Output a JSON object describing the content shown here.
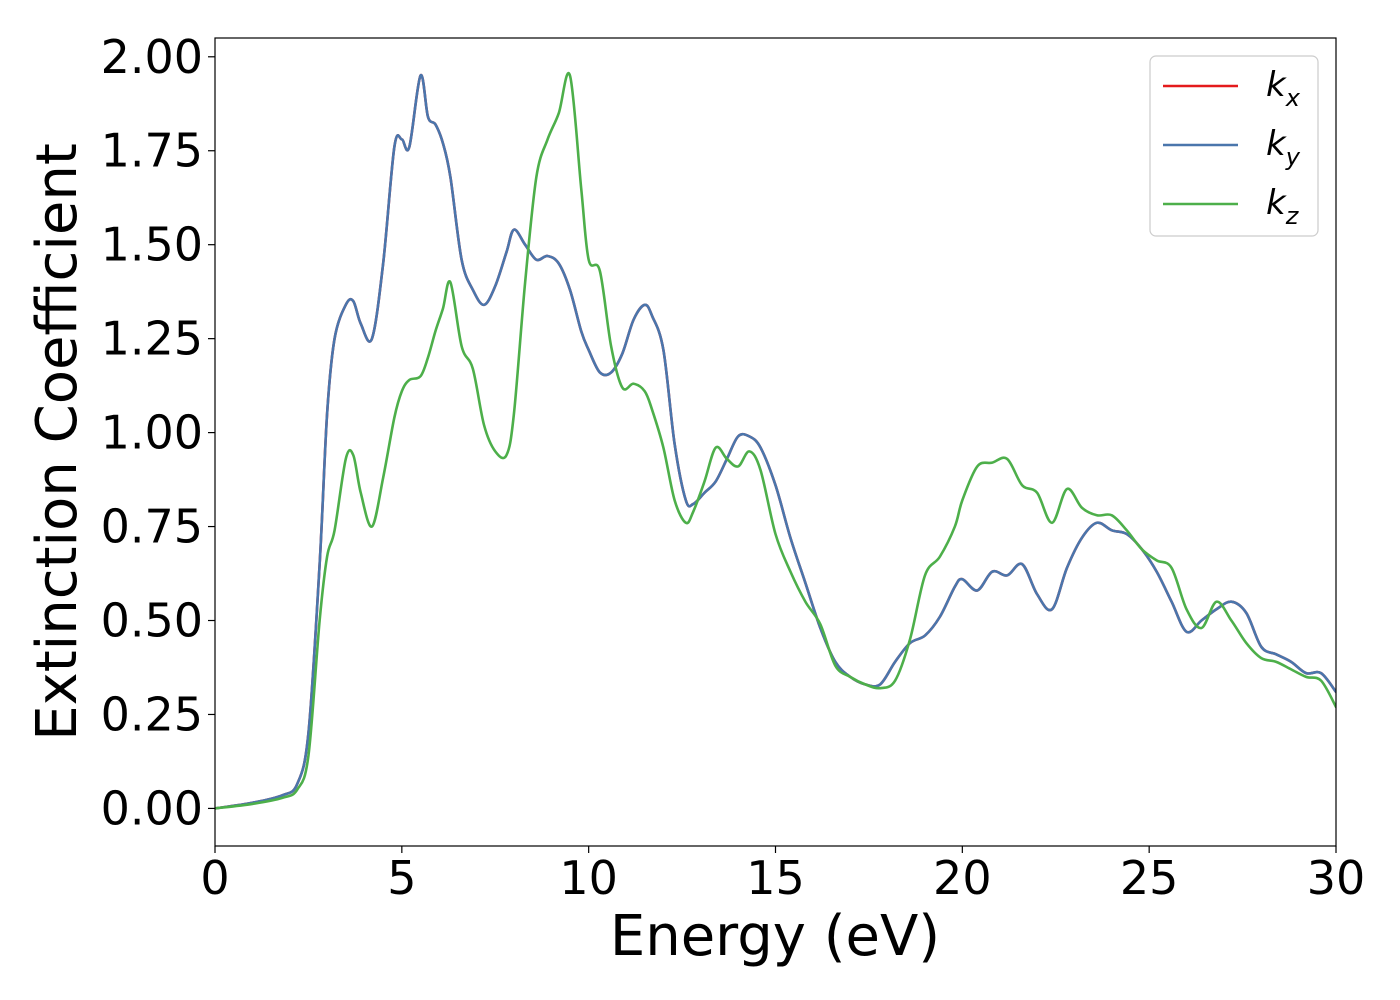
{
  "chart_data": {
    "type": "line",
    "title": "",
    "xlabel": "Energy (eV)",
    "ylabel": "Extinction Coefficient",
    "xlim": [
      0,
      30
    ],
    "ylim": [
      -0.1,
      2.05
    ],
    "xticks": [
      0,
      5,
      10,
      15,
      20,
      25,
      30
    ],
    "xtick_labels": [
      "0",
      "5",
      "10",
      "15",
      "20",
      "25",
      "30"
    ],
    "yticks": [
      0.0,
      0.25,
      0.5,
      0.75,
      1.0,
      1.25,
      1.5,
      1.75,
      2.0
    ],
    "ytick_labels": [
      "0.00",
      "0.25",
      "0.50",
      "0.75",
      "1.00",
      "1.25",
      "1.50",
      "1.75",
      "2.00"
    ],
    "grid": false,
    "legend_position": "top-right",
    "series": [
      {
        "name": "k",
        "subscript": "x",
        "color": "#e41a1c",
        "x": [
          0,
          1,
          1.8,
          2.2,
          2.5,
          2.8,
          3.0,
          3.2,
          3.5,
          3.7,
          3.9,
          4.2,
          4.5,
          4.8,
          5.0,
          5.2,
          5.5,
          5.7,
          5.9,
          6.1,
          6.3,
          6.6,
          6.9,
          7.2,
          7.5,
          7.8,
          8.0,
          8.3,
          8.6,
          8.9,
          9.2,
          9.5,
          9.8,
          10.0,
          10.3,
          10.6,
          10.9,
          11.2,
          11.5,
          11.7,
          12.0,
          12.3,
          12.6,
          12.8,
          13.1,
          13.4,
          13.7,
          14.0,
          14.3,
          14.6,
          15.0,
          15.4,
          15.8,
          16.2,
          16.6,
          17.0,
          17.4,
          17.8,
          18.2,
          18.6,
          19.0,
          19.4,
          19.8,
          20.0,
          20.4,
          20.8,
          21.2,
          21.6,
          22.0,
          22.4,
          22.8,
          23.2,
          23.6,
          24.0,
          24.4,
          24.8,
          25.2,
          25.6,
          26.0,
          26.4,
          26.8,
          27.2,
          27.6,
          28.0,
          28.4,
          28.8,
          29.2,
          29.6,
          30.0
        ],
        "values": [
          0.0,
          0.015,
          0.035,
          0.065,
          0.2,
          0.65,
          1.05,
          1.25,
          1.34,
          1.35,
          1.29,
          1.25,
          1.45,
          1.76,
          1.78,
          1.76,
          1.95,
          1.84,
          1.82,
          1.77,
          1.68,
          1.46,
          1.38,
          1.34,
          1.39,
          1.48,
          1.54,
          1.5,
          1.46,
          1.47,
          1.45,
          1.38,
          1.27,
          1.22,
          1.16,
          1.16,
          1.21,
          1.3,
          1.34,
          1.31,
          1.22,
          0.97,
          0.82,
          0.81,
          0.84,
          0.87,
          0.93,
          0.99,
          0.99,
          0.96,
          0.86,
          0.72,
          0.6,
          0.48,
          0.39,
          0.35,
          0.33,
          0.33,
          0.39,
          0.44,
          0.46,
          0.51,
          0.59,
          0.61,
          0.58,
          0.63,
          0.62,
          0.65,
          0.57,
          0.53,
          0.64,
          0.72,
          0.76,
          0.74,
          0.73,
          0.69,
          0.63,
          0.55,
          0.47,
          0.5,
          0.53,
          0.55,
          0.52,
          0.43,
          0.41,
          0.39,
          0.36,
          0.36,
          0.31
        ]
      },
      {
        "name": "k",
        "subscript": "y",
        "color": "#4a76ac",
        "x": [
          0,
          1,
          1.8,
          2.2,
          2.5,
          2.8,
          3.0,
          3.2,
          3.5,
          3.7,
          3.9,
          4.2,
          4.5,
          4.8,
          5.0,
          5.2,
          5.5,
          5.7,
          5.9,
          6.1,
          6.3,
          6.6,
          6.9,
          7.2,
          7.5,
          7.8,
          8.0,
          8.3,
          8.6,
          8.9,
          9.2,
          9.5,
          9.8,
          10.0,
          10.3,
          10.6,
          10.9,
          11.2,
          11.5,
          11.7,
          12.0,
          12.3,
          12.6,
          12.8,
          13.1,
          13.4,
          13.7,
          14.0,
          14.3,
          14.6,
          15.0,
          15.4,
          15.8,
          16.2,
          16.6,
          17.0,
          17.4,
          17.8,
          18.2,
          18.6,
          19.0,
          19.4,
          19.8,
          20.0,
          20.4,
          20.8,
          21.2,
          21.6,
          22.0,
          22.4,
          22.8,
          23.2,
          23.6,
          24.0,
          24.4,
          24.8,
          25.2,
          25.6,
          26.0,
          26.4,
          26.8,
          27.2,
          27.6,
          28.0,
          28.4,
          28.8,
          29.2,
          29.6,
          30.0
        ],
        "values": [
          0.0,
          0.015,
          0.035,
          0.065,
          0.2,
          0.65,
          1.05,
          1.25,
          1.34,
          1.35,
          1.29,
          1.25,
          1.45,
          1.76,
          1.78,
          1.76,
          1.95,
          1.84,
          1.82,
          1.77,
          1.68,
          1.46,
          1.38,
          1.34,
          1.39,
          1.48,
          1.54,
          1.5,
          1.46,
          1.47,
          1.45,
          1.38,
          1.27,
          1.22,
          1.16,
          1.16,
          1.21,
          1.3,
          1.34,
          1.31,
          1.22,
          0.97,
          0.82,
          0.81,
          0.84,
          0.87,
          0.93,
          0.99,
          0.99,
          0.96,
          0.86,
          0.72,
          0.6,
          0.48,
          0.39,
          0.35,
          0.33,
          0.33,
          0.39,
          0.44,
          0.46,
          0.51,
          0.59,
          0.61,
          0.58,
          0.63,
          0.62,
          0.65,
          0.57,
          0.53,
          0.64,
          0.72,
          0.76,
          0.74,
          0.73,
          0.69,
          0.63,
          0.55,
          0.47,
          0.5,
          0.53,
          0.55,
          0.52,
          0.43,
          0.41,
          0.39,
          0.36,
          0.36,
          0.31
        ]
      },
      {
        "name": "k",
        "subscript": "z",
        "color": "#4daf4a",
        "x": [
          0,
          1,
          1.8,
          2.2,
          2.5,
          2.8,
          3.0,
          3.2,
          3.5,
          3.7,
          3.9,
          4.2,
          4.5,
          4.8,
          5.0,
          5.2,
          5.5,
          5.7,
          5.9,
          6.1,
          6.3,
          6.6,
          6.9,
          7.2,
          7.5,
          7.8,
          8.0,
          8.3,
          8.6,
          8.9,
          9.2,
          9.5,
          9.8,
          10.0,
          10.3,
          10.6,
          10.9,
          11.2,
          11.5,
          11.7,
          12.0,
          12.3,
          12.6,
          12.8,
          13.1,
          13.4,
          13.7,
          14.0,
          14.3,
          14.6,
          15.0,
          15.4,
          15.8,
          16.2,
          16.6,
          17.0,
          17.4,
          17.8,
          18.2,
          18.6,
          19.0,
          19.4,
          19.8,
          20.0,
          20.4,
          20.8,
          21.2,
          21.6,
          22.0,
          22.4,
          22.8,
          23.2,
          23.6,
          24.0,
          24.4,
          24.8,
          25.2,
          25.6,
          26.0,
          26.4,
          26.8,
          27.2,
          27.6,
          28.0,
          28.4,
          28.8,
          29.2,
          29.6,
          30.0
        ],
        "values": [
          0.0,
          0.012,
          0.028,
          0.05,
          0.14,
          0.5,
          0.67,
          0.74,
          0.93,
          0.94,
          0.84,
          0.75,
          0.88,
          1.04,
          1.11,
          1.14,
          1.15,
          1.2,
          1.27,
          1.33,
          1.4,
          1.23,
          1.17,
          1.02,
          0.95,
          0.94,
          1.05,
          1.4,
          1.68,
          1.78,
          1.85,
          1.95,
          1.65,
          1.46,
          1.43,
          1.23,
          1.12,
          1.13,
          1.11,
          1.06,
          0.96,
          0.82,
          0.76,
          0.79,
          0.87,
          0.96,
          0.93,
          0.91,
          0.95,
          0.9,
          0.73,
          0.63,
          0.55,
          0.49,
          0.38,
          0.35,
          0.33,
          0.32,
          0.34,
          0.45,
          0.62,
          0.67,
          0.75,
          0.82,
          0.91,
          0.92,
          0.93,
          0.86,
          0.84,
          0.76,
          0.85,
          0.8,
          0.78,
          0.78,
          0.74,
          0.69,
          0.66,
          0.64,
          0.53,
          0.48,
          0.55,
          0.5,
          0.44,
          0.4,
          0.39,
          0.37,
          0.35,
          0.34,
          0.27
        ]
      }
    ]
  }
}
